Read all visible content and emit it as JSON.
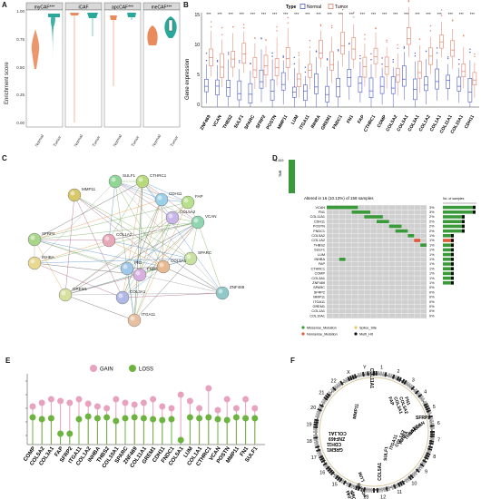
{
  "panels": {
    "A": {
      "label": "A",
      "facets": [
        "myCAF***",
        "iCAF",
        "apcCAF***",
        "meCAF***"
      ],
      "groups": [
        "Normal",
        "Tumor"
      ],
      "ylabel": "Enrichment score",
      "yticks": [
        "0.00",
        "0.25",
        "0.50",
        "0.75",
        "1.00"
      ],
      "colors": {
        "normal": "#e98b5c",
        "tumor": "#2aa89c"
      }
    },
    "B": {
      "label": "B",
      "legend_title": "Type",
      "legend_items": [
        "Normal",
        "Tumor"
      ],
      "ylabel": "Gene expression",
      "yticks": [
        "0",
        "5",
        "10",
        "15"
      ],
      "genes": [
        "ZNF469",
        "VCAN",
        "THBS2",
        "SULF1",
        "SPARC",
        "SFRP2",
        "POSTN",
        "MMP11",
        "LUM",
        "ITGA11",
        "INHBA",
        "GREM1",
        "FNDC1",
        "FN1",
        "FAP",
        "CTHRC1",
        "COMP",
        "COL5A2",
        "COL5A1",
        "COL3A1",
        "COL1A2",
        "COL1A1",
        "COL11A1",
        "COL10A1",
        "CDH11"
      ],
      "stars": "***",
      "colors": {
        "normal": "#4a5bc4",
        "tumor": "#e0816a"
      }
    },
    "C": {
      "label": "C",
      "nodes": [
        "SULF1",
        "CTHRC1",
        "MMP11",
        "CDH11",
        "FAP",
        "COL5A2",
        "VCAN",
        "SFRP2",
        "COL1A2",
        "SPARC",
        "INHBA",
        "FN1",
        "FNDC1",
        "COL5A1",
        "ZNF469",
        "GREM1",
        "COL3A1",
        "ITGA11"
      ]
    },
    "D": {
      "label": "D",
      "title": "Altered in 16 (10.13%) of 158 samples",
      "tmb_label": "TMB",
      "tmb_max": "11.619",
      "genes": [
        "VCAN",
        "FN1",
        "COL11A1",
        "CDH11",
        "POSTN",
        "FNDC1",
        "COL5A2",
        "COL1A2",
        "THBS2",
        "SULF1",
        "LUM",
        "INHBA",
        "FAP",
        "CTHRC1",
        "COMP",
        "COL3A1",
        "ZNF469",
        "SPARC",
        "SFRP2",
        "MMP11",
        "ITGA11",
        "GREM1",
        "COL1A1",
        "COL10A1"
      ],
      "pcts": [
        "3%",
        "3%",
        "2%",
        "2%",
        "2%",
        "2%",
        "1%",
        "1%",
        "1%",
        "1%",
        "1%",
        "1%",
        "1%",
        "1%",
        "1%",
        "1%",
        "1%",
        "0%",
        "0%",
        "0%",
        "0%",
        "0%",
        "0%",
        "0%"
      ],
      "side_title": "No. of samples",
      "side_ticks": [
        "0",
        "2",
        "4"
      ],
      "legend": [
        "Missense_Mutation",
        "Nonsense_Mutation",
        "Splice_Site",
        "Multi_Hit"
      ],
      "colors": {
        "missense": "#3a9a3a",
        "nonsense": "#e05a3a",
        "splice": "#e8c86a",
        "multi": "#111111",
        "bg": "#cfcfcf"
      }
    },
    "E": {
      "label": "E",
      "legend": [
        "GAIN",
        "LOSS"
      ],
      "genes": [
        "COMP",
        "COL5A2",
        "COL3A1",
        "FAP",
        "SFRP2",
        "ITGA11",
        "COL1A2",
        "INHBA",
        "THBS2",
        "COL10A1",
        "SPARC",
        "ZNF469",
        "COL11A1",
        "GREM1",
        "CDH11",
        "FNDC1",
        "COL5A1",
        "LUM",
        "COL1A1",
        "CTHRC1",
        "VCAN",
        "POSTN",
        "MMP11",
        "FN1",
        "SULF1"
      ],
      "colors": {
        "gain": "#e8a2c0",
        "loss": "#6db33f"
      }
    },
    "F": {
      "label": "F",
      "chromosomes": [
        "1",
        "2",
        "3",
        "4",
        "5",
        "6",
        "7",
        "8",
        "9",
        "10",
        "11",
        "12",
        "13",
        "14",
        "15",
        "16",
        "17",
        "18",
        "19",
        "20",
        "21",
        "22",
        "X",
        "Y"
      ],
      "genes": [
        "COL11A1",
        "FAP",
        "COL3A1",
        "COL5A2",
        "FN1",
        "SFRP2",
        "VCAN",
        "SPARC",
        "THBS2",
        "INHBA",
        "COL1A2",
        "ITGA11",
        "COL5A1",
        "SULF1",
        "LUM",
        "POSTN",
        "GREM1",
        "CDH11",
        "ZNF469",
        "COL1A1",
        "MMP11",
        "COMP",
        "COL10A1"
      ]
    }
  }
}
